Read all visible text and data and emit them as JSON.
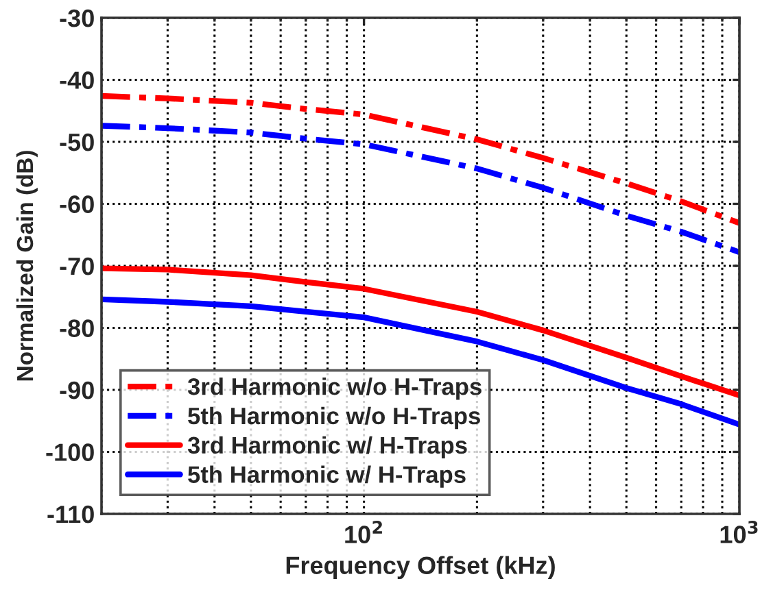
{
  "chart_data": {
    "type": "line",
    "xlabel": "Frequency Offset (kHz)",
    "ylabel": "Normalized Gain (dB)",
    "log": "x",
    "xlim": [
      20,
      1000
    ],
    "ylim": [
      -110,
      -30
    ],
    "xticks": [
      {
        "value": 100,
        "label": "10$^{2}$"
      },
      {
        "value": 1000,
        "label": "10$^{3}$"
      }
    ],
    "yticks": [
      -110,
      -100,
      -90,
      -80,
      -70,
      -60,
      -50,
      -40,
      -30
    ],
    "grid": true,
    "legend": "bottom left",
    "x": [
      20,
      30,
      50,
      70,
      100,
      200,
      300,
      500,
      700,
      1000
    ],
    "series": [
      {
        "name": "3rd Harmonic w/o H-Traps",
        "color": "#ff0000",
        "line_style": "dashed",
        "values": [
          -42.6,
          -43.0,
          -43.7,
          -44.7,
          -45.6,
          -49.6,
          -52.6,
          -56.7,
          -59.6,
          -63.1
        ]
      },
      {
        "name": "5th Harmonic w/o H-Traps",
        "color": "#0000ff",
        "line_style": "dashed",
        "values": [
          -47.4,
          -47.8,
          -48.5,
          -49.5,
          -50.4,
          -54.3,
          -57.4,
          -61.9,
          -64.5,
          -67.8
        ]
      },
      {
        "name": "3rd Harmonic w/ H-Traps",
        "color": "#ff0000",
        "line_style": "solid",
        "values": [
          -70.4,
          -70.6,
          -71.5,
          -72.6,
          -73.7,
          -77.4,
          -80.4,
          -84.8,
          -87.8,
          -90.9
        ]
      },
      {
        "name": "5th Harmonic w/ H-Traps",
        "color": "#0000ff",
        "line_style": "solid",
        "values": [
          -75.4,
          -75.8,
          -76.5,
          -77.4,
          -78.3,
          -82.2,
          -85.2,
          -89.7,
          -92.3,
          -95.6
        ]
      }
    ]
  }
}
